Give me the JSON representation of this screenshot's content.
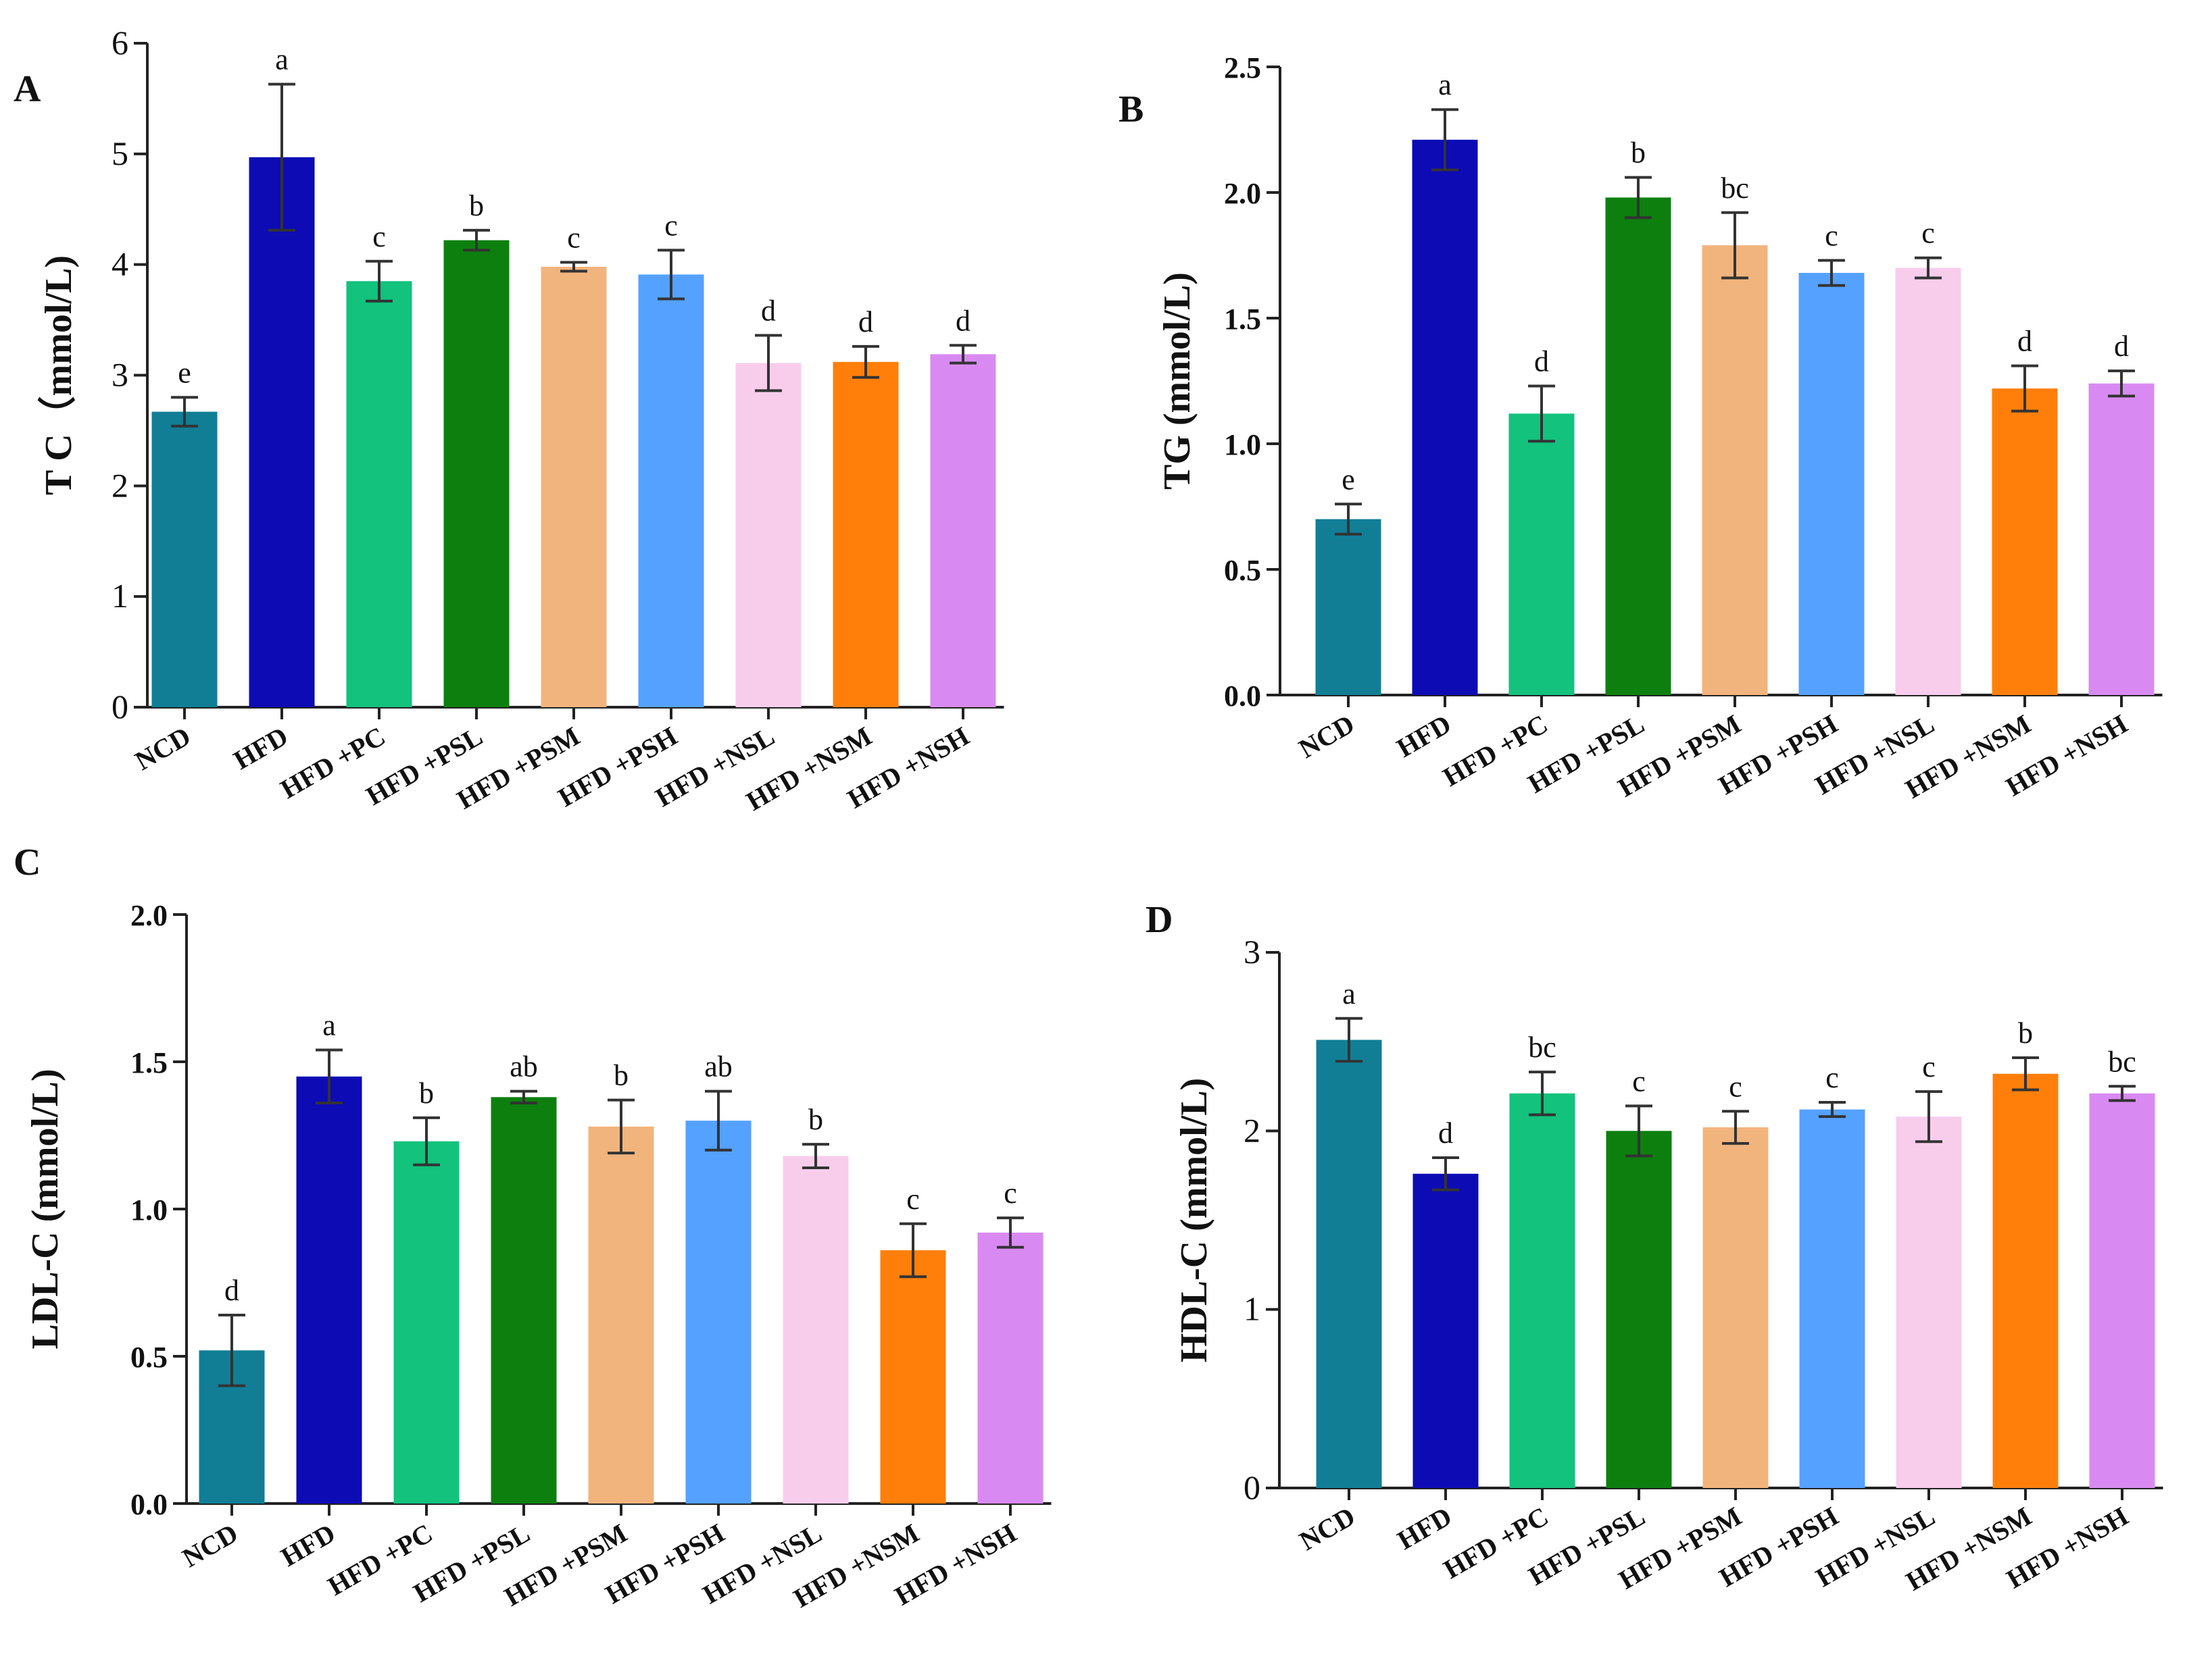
{
  "colors": {
    "NCD": "#117E96",
    "HFD": "#0D0BB4",
    "HFD +PC": "#12C27D",
    "HFD +PSL": "#0D7F0F",
    "HFD +PSM": "#F2B47D",
    "HFD +PSH": "#55A1FF",
    "HFD +NSL": "#F8CDEC",
    "HFD +NSM": "#FF7F0A",
    "HFD +NSH": "#D98AF2"
  },
  "chart_data": [
    {
      "panel": "A",
      "type": "bar",
      "ylabel": "T C（mmol/L)",
      "ylim": [
        0,
        6
      ],
      "yticks": [
        "0",
        "1",
        "2",
        "3",
        "4",
        "5",
        "6"
      ],
      "categories": [
        "NCD",
        "HFD",
        "HFD +PC",
        "HFD +PSL",
        "HFD +PSM",
        "HFD +PSH",
        "HFD +NSL",
        "HFD +NSM",
        "HFD +NSH"
      ],
      "values": [
        2.67,
        4.97,
        3.85,
        4.22,
        3.98,
        3.91,
        3.11,
        3.12,
        3.19
      ],
      "errors": [
        0.13,
        0.66,
        0.18,
        0.09,
        0.04,
        0.22,
        0.25,
        0.14,
        0.08
      ],
      "labels": [
        "e",
        "a",
        "c",
        "b",
        "c",
        "c",
        "d",
        "d",
        "d"
      ]
    },
    {
      "panel": "B",
      "type": "bar",
      "ylabel": "TG (mmol/L)",
      "ylim": [
        0,
        2.5
      ],
      "yticks": [
        "0.0",
        "0.5",
        "1.0",
        "1.5",
        "2.0",
        "2.5"
      ],
      "categories": [
        "NCD",
        "HFD",
        "HFD +PC",
        "HFD +PSL",
        "HFD +PSM",
        "HFD +PSH",
        "HFD +NSL",
        "HFD +NSM",
        "HFD +NSH"
      ],
      "values": [
        0.7,
        2.21,
        1.12,
        1.98,
        1.79,
        1.68,
        1.7,
        1.22,
        1.24
      ],
      "errors": [
        0.06,
        0.12,
        0.11,
        0.08,
        0.13,
        0.05,
        0.04,
        0.09,
        0.05
      ],
      "labels": [
        "e",
        "a",
        "d",
        "b",
        "bc",
        "c",
        "c",
        "d",
        "d"
      ]
    },
    {
      "panel": "C",
      "type": "bar",
      "ylabel": "LDL-C (mmol/L)",
      "ylim": [
        0,
        2
      ],
      "yticks": [
        "0.0",
        "0.5",
        "1.0",
        "1.5",
        "2.0"
      ],
      "categories": [
        "NCD",
        "HFD",
        "HFD +PC",
        "HFD +PSL",
        "HFD +PSM",
        "HFD +PSH",
        "HFD +NSL",
        "HFD +NSM",
        "HFD +NSH"
      ],
      "values": [
        0.52,
        1.45,
        1.23,
        1.38,
        1.28,
        1.3,
        1.18,
        0.86,
        0.92
      ],
      "errors": [
        0.12,
        0.09,
        0.08,
        0.02,
        0.09,
        0.1,
        0.04,
        0.09,
        0.05
      ],
      "labels": [
        "d",
        "a",
        "b",
        "ab",
        "b",
        "ab",
        "b",
        "c",
        "c"
      ]
    },
    {
      "panel": "D",
      "type": "bar",
      "ylabel": "HDL-C (mmol/L)",
      "ylim": [
        0,
        3
      ],
      "yticks": [
        "0",
        "1",
        "2",
        "3"
      ],
      "categories": [
        "NCD",
        "HFD",
        "HFD +PC",
        "HFD +PSL",
        "HFD +PSM",
        "HFD +PSH",
        "HFD +NSL",
        "HFD +NSM",
        "HFD +NSH"
      ],
      "values": [
        2.51,
        1.76,
        2.21,
        2.0,
        2.02,
        2.12,
        2.08,
        2.32,
        2.21
      ],
      "errors": [
        0.12,
        0.09,
        0.12,
        0.14,
        0.09,
        0.04,
        0.14,
        0.09,
        0.04
      ],
      "labels": [
        "a",
        "d",
        "bc",
        "c",
        "c",
        "c",
        "c",
        "b",
        "bc"
      ]
    }
  ]
}
